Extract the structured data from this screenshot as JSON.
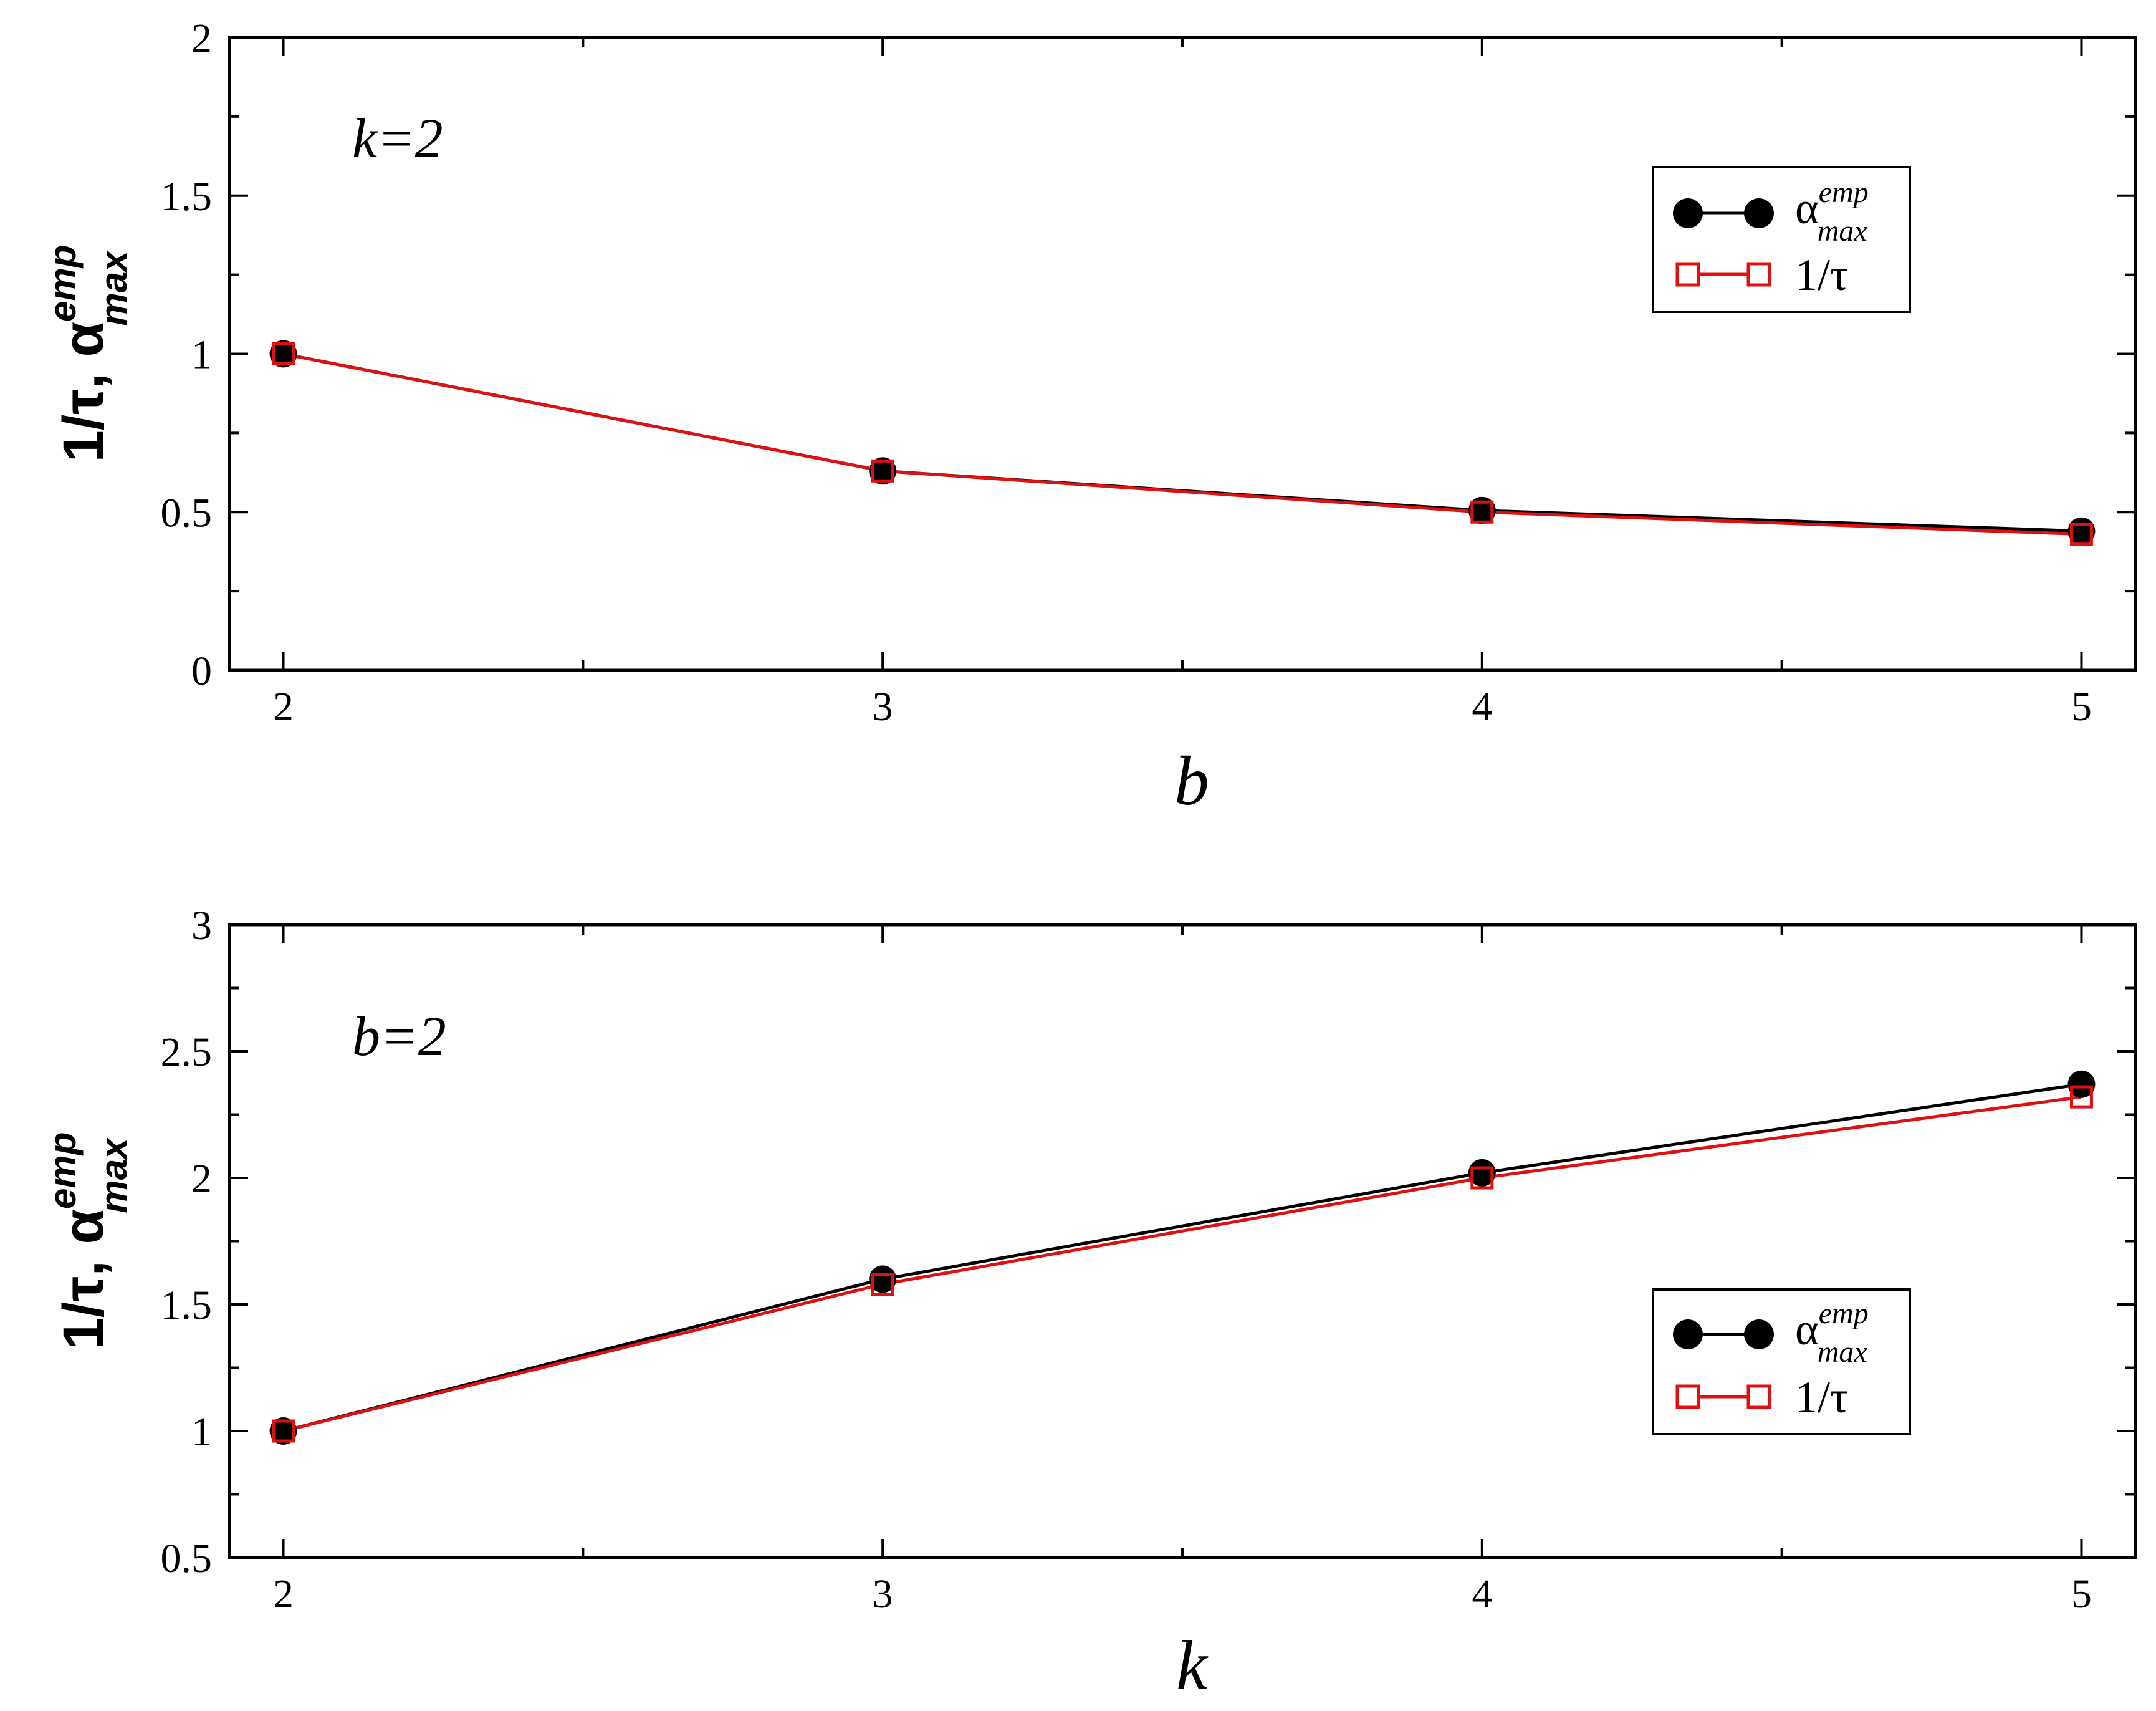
{
  "chart_data": [
    {
      "type": "line",
      "xlabel": "b",
      "ylabel": {
        "main": "1/τ, α",
        "sup": "emp",
        "sub": "max"
      },
      "annotation": "k=2",
      "x": [
        2,
        3,
        4,
        5
      ],
      "xticks": [
        "2",
        "3",
        "4",
        "5"
      ],
      "xlim": [
        1.91,
        5.09
      ],
      "ylim": [
        0,
        2
      ],
      "yticks": [
        "0",
        "0.5",
        "1",
        "1.5",
        "2"
      ],
      "ytick_values": [
        0,
        0.5,
        1,
        1.5,
        2
      ],
      "legend_position": "upper-right",
      "series": [
        {
          "name": "α",
          "name_sup": "emp",
          "name_sub": "max",
          "color": "#000000",
          "marker": "filled-circle",
          "values": [
            1.0,
            0.63,
            0.505,
            0.44
          ]
        },
        {
          "name": "1/τ",
          "color": "#e01010",
          "marker": "open-square",
          "values": [
            1.0,
            0.63,
            0.5,
            0.43
          ]
        }
      ]
    },
    {
      "type": "line",
      "xlabel": "k",
      "ylabel": {
        "main": "1/τ, α",
        "sup": "emp",
        "sub": "max"
      },
      "annotation": "b=2",
      "x": [
        2,
        3,
        4,
        5
      ],
      "xticks": [
        "2",
        "3",
        "4",
        "5"
      ],
      "xlim": [
        1.91,
        5.09
      ],
      "ylim": [
        0.5,
        3
      ],
      "yticks": [
        "0.5",
        "1",
        "1.5",
        "2",
        "2.5",
        "3"
      ],
      "ytick_values": [
        0.5,
        1,
        1.5,
        2,
        2.5,
        3
      ],
      "legend_position": "lower-right",
      "series": [
        {
          "name": "α",
          "name_sup": "emp",
          "name_sub": "max",
          "color": "#000000",
          "marker": "filled-circle",
          "values": [
            1.0,
            1.6,
            2.02,
            2.37
          ]
        },
        {
          "name": "1/τ",
          "color": "#e01010",
          "marker": "open-square",
          "values": [
            1.0,
            1.58,
            2.0,
            2.32
          ]
        }
      ]
    }
  ]
}
